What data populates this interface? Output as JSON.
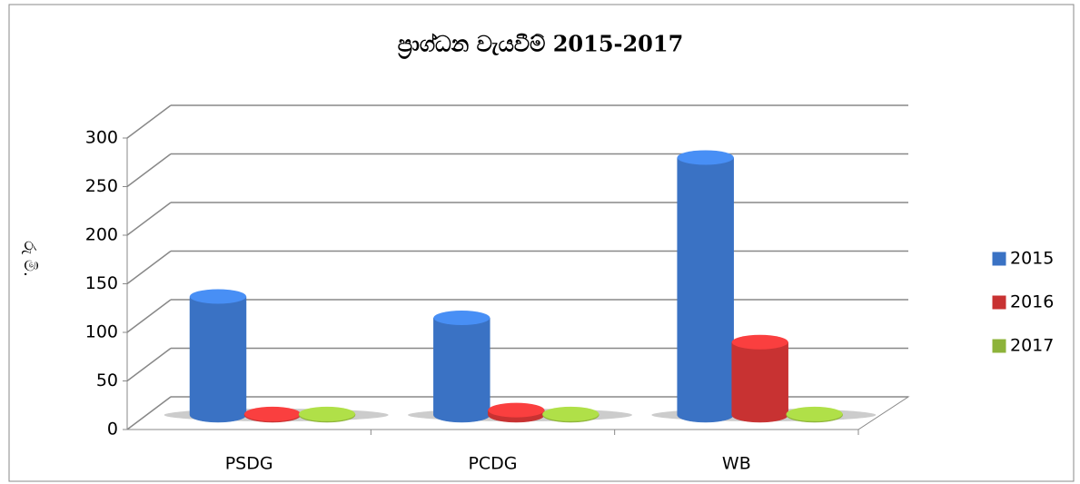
{
  "chart_data": {
    "type": "bar3d",
    "title": "ප්‍රාග්ධන වැයවීම් 2015-2017",
    "y_label": "රු මි.",
    "categories": [
      "PSDG",
      "PCDG",
      "WB"
    ],
    "series": [
      {
        "name": "2015",
        "color": "#3a72c4",
        "values": [
          122,
          100,
          265
        ]
      },
      {
        "name": "2016",
        "color": "#c83232",
        "values": [
          1,
          5,
          75
        ]
      },
      {
        "name": "2017",
        "color": "#8db33a",
        "values": [
          1,
          1,
          1
        ]
      }
    ],
    "ylim": [
      0,
      300
    ],
    "yticks": [
      0,
      50,
      100,
      150,
      200,
      250,
      300
    ],
    "grid": true,
    "legend": "right"
  }
}
